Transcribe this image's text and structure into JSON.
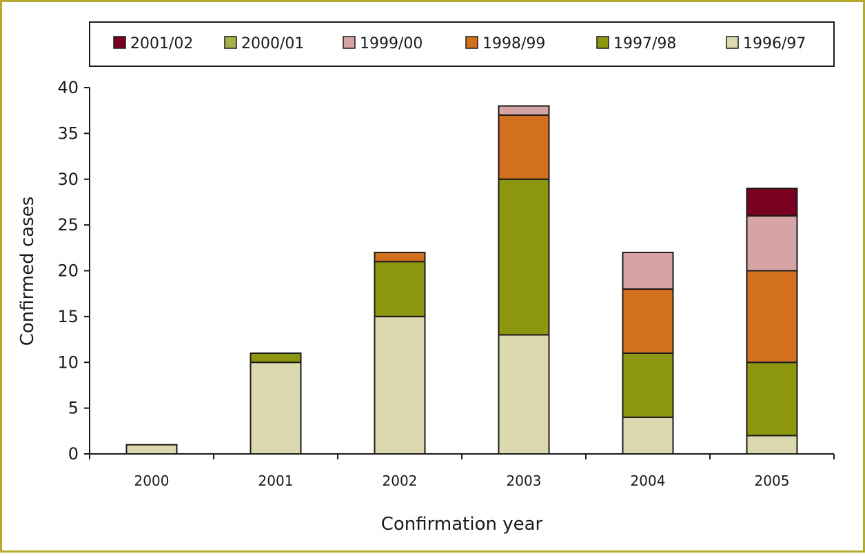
{
  "chart_data": {
    "type": "bar",
    "stacked": true,
    "categories": [
      "2000",
      "2001",
      "2002",
      "2003",
      "2004",
      "2005"
    ],
    "series": [
      {
        "name": "1996/97",
        "color": "#dcd9ae",
        "values": [
          1,
          10,
          15,
          13,
          4,
          2
        ]
      },
      {
        "name": "1997/98",
        "color": "#8c960e",
        "values": [
          0,
          1,
          6,
          17,
          7,
          8
        ]
      },
      {
        "name": "1998/99",
        "color": "#d3701e",
        "values": [
          0,
          0,
          1,
          7,
          7,
          10
        ]
      },
      {
        "name": "1999/00",
        "color": "#d6a4a4",
        "values": [
          0,
          0,
          0,
          1,
          4,
          6
        ]
      },
      {
        "name": "2000/01",
        "color": "#a8b04a",
        "values": [
          0,
          0,
          0,
          0,
          0,
          0
        ]
      },
      {
        "name": "2001/02",
        "color": "#7a0020",
        "values": [
          0,
          0,
          0,
          0,
          0,
          3
        ]
      }
    ],
    "legend_order": [
      "2001/02",
      "2000/01",
      "1999/00",
      "1998/99",
      "1997/98",
      "1996/97"
    ],
    "xlabel": "Confirmation year",
    "ylabel": "Confirmed cases",
    "ylim": [
      0,
      40
    ],
    "yticks": [
      "0",
      "5",
      "10",
      "15",
      "20",
      "25",
      "30",
      "35",
      "40"
    ],
    "grid": false,
    "legend_position": "top",
    "frame_color": "#b5a92e"
  }
}
